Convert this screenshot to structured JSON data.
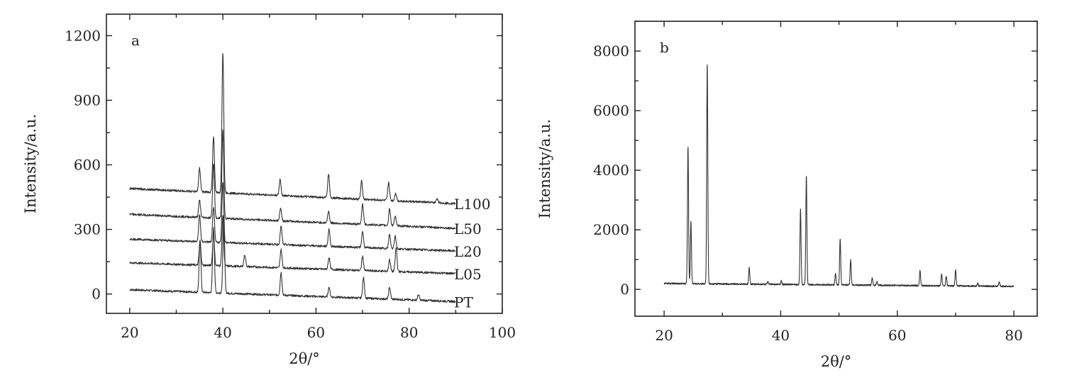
{
  "chart_data": [
    {
      "type": "line",
      "panel_label": "a",
      "xlabel": "2θ/°",
      "ylabel": "Intensity/a.u.",
      "xlim": [
        15,
        100
      ],
      "ylim": [
        -90,
        1300
      ],
      "x_ticks": [
        20,
        40,
        60,
        80,
        100
      ],
      "y_ticks": [
        0,
        300,
        600,
        900,
        1200
      ],
      "x_tick_labels": [
        "20",
        "40",
        "60",
        "80",
        "100"
      ],
      "y_tick_labels": [
        "0",
        "300",
        "600",
        "900",
        "1200"
      ],
      "grid": false,
      "legend": "series labels at right end of each trace",
      "series": [
        {
          "name": "PT",
          "x_range": [
            20,
            90
          ],
          "baseline_start": 20,
          "baseline_end": -35,
          "peaks": [
            [
              35.1,
              240
            ],
            [
              38.0,
              300
            ],
            [
              40.2,
              370
            ],
            [
              52.5,
              105
            ],
            [
              62.8,
              45
            ],
            [
              70.2,
              95
            ],
            [
              75.8,
              55
            ],
            [
              82.0,
              25
            ]
          ]
        },
        {
          "name": "L05",
          "x_range": [
            20,
            90
          ],
          "baseline_start": 145,
          "baseline_end": 95,
          "peaks": [
            [
              35.1,
              110
            ],
            [
              38.0,
              150
            ],
            [
              40.0,
              230
            ],
            [
              44.7,
              55
            ],
            [
              52.5,
              85
            ],
            [
              62.8,
              55
            ],
            [
              70.0,
              65
            ],
            [
              75.8,
              55
            ],
            [
              77.2,
              110
            ]
          ]
        },
        {
          "name": "L20",
          "x_range": [
            20,
            90
          ],
          "baseline_start": 255,
          "baseline_end": 200,
          "peaks": [
            [
              35.0,
              125
            ],
            [
              38.0,
              165
            ],
            [
              40.0,
              285
            ],
            [
              52.5,
              85
            ],
            [
              62.8,
              80
            ],
            [
              70.0,
              75
            ],
            [
              75.8,
              65
            ],
            [
              77.0,
              60
            ]
          ]
        },
        {
          "name": "L50",
          "x_range": [
            20,
            90
          ],
          "baseline_start": 370,
          "baseline_end": 305,
          "peaks": [
            [
              35.0,
              80
            ],
            [
              38.0,
              255
            ],
            [
              40.0,
              410
            ],
            [
              52.4,
              60
            ],
            [
              62.7,
              55
            ],
            [
              70.0,
              95
            ],
            [
              75.8,
              80
            ],
            [
              77.0,
              45
            ]
          ]
        },
        {
          "name": "L100",
          "x_range": [
            20,
            90
          ],
          "baseline_start": 490,
          "baseline_end": 420,
          "peaks": [
            [
              35.0,
              110
            ],
            [
              38.0,
              260
            ],
            [
              40.0,
              650
            ],
            [
              52.3,
              75
            ],
            [
              62.7,
              110
            ],
            [
              69.8,
              85
            ],
            [
              75.6,
              85
            ],
            [
              77.1,
              35
            ],
            [
              86.0,
              20
            ]
          ]
        }
      ]
    },
    {
      "type": "line",
      "panel_label": "b",
      "xlabel": "2θ/°",
      "ylabel": "Intensity/a.u.",
      "xlim": [
        15,
        84
      ],
      "ylim": [
        -900,
        9000
      ],
      "x_ticks": [
        20,
        40,
        60,
        80
      ],
      "y_ticks": [
        0,
        2000,
        4000,
        6000,
        8000
      ],
      "x_tick_labels": [
        "20",
        "40",
        "60",
        "80"
      ],
      "y_tick_labels": [
        "0",
        "2000",
        "4000",
        "6000",
        "8000"
      ],
      "grid": false,
      "series": [
        {
          "name": "",
          "x_range": [
            20,
            80
          ],
          "baseline_start": 200,
          "baseline_end": 100,
          "peaks": [
            [
              24.1,
              4600
            ],
            [
              24.6,
              2100
            ],
            [
              27.4,
              7400
            ],
            [
              34.6,
              560
            ],
            [
              37.8,
              80
            ],
            [
              40.1,
              120
            ],
            [
              43.4,
              2550
            ],
            [
              44.4,
              3650
            ],
            [
              49.4,
              380
            ],
            [
              50.2,
              1550
            ],
            [
              52.0,
              850
            ],
            [
              55.7,
              260
            ],
            [
              56.5,
              120
            ],
            [
              63.9,
              520
            ],
            [
              67.6,
              380
            ],
            [
              68.4,
              330
            ],
            [
              70.0,
              540
            ],
            [
              73.8,
              90
            ],
            [
              77.5,
              140
            ]
          ]
        }
      ]
    }
  ]
}
